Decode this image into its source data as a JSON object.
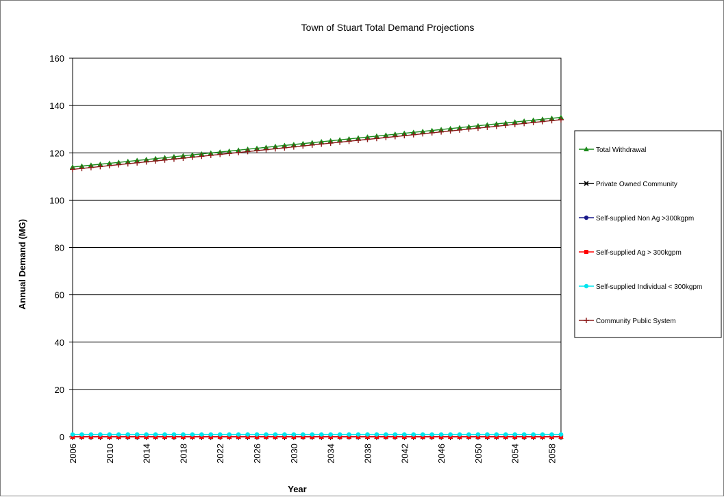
{
  "chart_data": {
    "type": "line",
    "title": "Town of Stuart Total Demand Projections",
    "xlabel": "Year",
    "ylabel": "Annual Demand (MG)",
    "xlim": [
      2006,
      2059
    ],
    "ylim": [
      0,
      160
    ],
    "y_ticks": [
      "0",
      "20",
      "40",
      "60",
      "80",
      "100",
      "120",
      "140",
      "160"
    ],
    "x_ticks": [
      "2006",
      "2010",
      "2014",
      "2018",
      "2022",
      "2026",
      "2030",
      "2034",
      "2038",
      "2042",
      "2046",
      "2050",
      "2054",
      "2058"
    ],
    "grid": true,
    "legend_position": "right",
    "series": [
      {
        "name": "Total Withdrawal",
        "color": "#1a8a1a",
        "marker": "triangle",
        "start": [
          2006,
          114
        ],
        "end": [
          2059,
          135
        ]
      },
      {
        "name": "Private Owned Community",
        "color": "#000000",
        "marker": "x",
        "start": [
          2006,
          0
        ],
        "end": [
          2059,
          0
        ]
      },
      {
        "name": "Self-supplied Non Ag >300kgpm",
        "color": "#1a1a8a",
        "marker": "circle",
        "start": [
          2006,
          0
        ],
        "end": [
          2059,
          0
        ]
      },
      {
        "name": "Self-supplied Ag > 300kgpm",
        "color": "#ff0000",
        "marker": "square",
        "start": [
          2006,
          0
        ],
        "end": [
          2059,
          0
        ]
      },
      {
        "name": "Self-supplied Individual < 300kgpm",
        "color": "#00e5ee",
        "marker": "circle",
        "start": [
          2006,
          1
        ],
        "end": [
          2059,
          1
        ]
      },
      {
        "name": "Community Public System",
        "color": "#8b1a1a",
        "marker": "plus",
        "start": [
          2006,
          113
        ],
        "end": [
          2059,
          134
        ]
      }
    ]
  }
}
